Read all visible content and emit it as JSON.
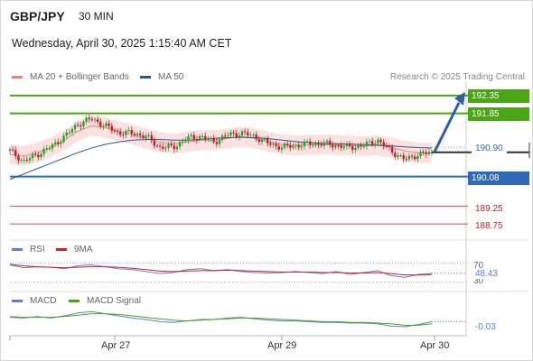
{
  "header": {
    "symbol": "GBP/JPY",
    "timeframe": "30 MIN",
    "datetime": "Wednesday, April 30, 2025 1:15:40 AM CET",
    "research": "Research © 2025 Trading Central"
  },
  "legend": {
    "ma20": "MA 20 + Bollinger Bands",
    "ma50": "MA 50",
    "rsi": "RSI",
    "rsi_ma": "9MA",
    "macd": "MACD",
    "macd_signal": "MACD Signal"
  },
  "colors": {
    "ma20": "#f08080",
    "ma50": "#2a5599",
    "bull_candle": "#2e9e2e",
    "bear_candle": "#c0202a",
    "resistance": "#4aa614",
    "support": "#2f6ab8",
    "target_down": "#c0202a",
    "arrow": "#2f5fa8"
  },
  "chart_data": [
    {
      "type": "candlestick",
      "title": "GBP/JPY",
      "x_ticks": [
        "Apr 27",
        "Apr 29",
        "Apr 30"
      ],
      "ylim": [
        188.4,
        192.7
      ],
      "levels": [
        {
          "label": "192.35",
          "value": 192.35,
          "kind": "resistance"
        },
        {
          "label": "191.85",
          "value": 191.85,
          "kind": "resistance"
        },
        {
          "label": "190.90",
          "value": 190.9,
          "kind": "pivot"
        },
        {
          "label": "190.08",
          "value": 190.08,
          "kind": "support"
        },
        {
          "label": "189.25",
          "value": 189.25,
          "kind": "target"
        },
        {
          "label": "188.75",
          "value": 188.75,
          "kind": "target"
        }
      ],
      "current_price": 190.76,
      "forecast_arrow": {
        "from": 190.77,
        "to": 192.35
      },
      "close_path": [
        190.8,
        190.5,
        190.7,
        190.9,
        191.2,
        191.55,
        191.7,
        191.5,
        191.3,
        191.3,
        191.2,
        190.9,
        190.9,
        191.15,
        191.2,
        191.05,
        191.25,
        191.3,
        191.2,
        191.0,
        190.9,
        190.95,
        191.0,
        191.0,
        190.95,
        190.9,
        190.95,
        191.1,
        190.8,
        190.55,
        190.7,
        190.75
      ],
      "ma20_path": [
        190.7,
        190.65,
        190.75,
        190.9,
        191.1,
        191.35,
        191.5,
        191.45,
        191.35,
        191.25,
        191.15,
        191.05,
        191.0,
        191.05,
        191.1,
        191.1,
        191.15,
        191.2,
        191.15,
        191.05,
        190.98,
        190.95,
        190.97,
        190.98,
        190.97,
        190.95,
        190.93,
        190.95,
        190.9,
        190.8,
        190.75,
        190.74
      ],
      "ma50_path": [
        190.0,
        190.15,
        190.3,
        190.45,
        190.6,
        190.75,
        190.88,
        190.98,
        191.05,
        191.1,
        191.12,
        191.12,
        191.1,
        191.1,
        191.12,
        191.15,
        191.17,
        191.18,
        191.17,
        191.14,
        191.1,
        191.06,
        191.03,
        191.01,
        191.0,
        190.99,
        190.97,
        190.96,
        190.94,
        190.91,
        190.89,
        190.88
      ]
    },
    {
      "type": "line",
      "title": "RSI",
      "levels": [
        {
          "label": "70",
          "value": 70
        },
        {
          "label": "30",
          "value": 30
        }
      ],
      "ylim": [
        20,
        80
      ],
      "current_label": "48.43",
      "current_value": 48.43,
      "series": [
        {
          "name": "RSI",
          "values": [
            66,
            60,
            62,
            61,
            58,
            64,
            66,
            62,
            58,
            56,
            52,
            48,
            50,
            56,
            58,
            54,
            56,
            52,
            50,
            49,
            50,
            52,
            50,
            48,
            52,
            46,
            50,
            54,
            44,
            40,
            46,
            48
          ]
        },
        {
          "name": "9MA",
          "values": [
            67,
            64,
            62,
            61,
            60,
            61,
            62,
            62,
            61,
            59,
            56,
            53,
            52,
            53,
            54,
            54,
            55,
            54,
            53,
            52,
            51,
            51,
            51,
            50,
            50,
            49,
            49,
            50,
            48,
            45,
            45,
            46
          ]
        }
      ]
    },
    {
      "type": "line",
      "title": "MACD",
      "ylim": [
        -0.2,
        0.15
      ],
      "current_label": "-0.03",
      "current_value": -0.03,
      "series": [
        {
          "name": "MACD",
          "values": [
            0.03,
            0.02,
            0.04,
            0.02,
            0.05,
            0.09,
            0.11,
            0.08,
            0.05,
            0.02,
            0.0,
            -0.03,
            -0.04,
            -0.02,
            0.0,
            0.0,
            0.02,
            0.03,
            0.01,
            -0.01,
            -0.02,
            -0.02,
            -0.03,
            -0.04,
            -0.04,
            -0.05,
            -0.05,
            -0.06,
            -0.09,
            -0.1,
            -0.07,
            -0.03
          ]
        },
        {
          "name": "MACD Signal",
          "values": [
            0.04,
            0.03,
            0.03,
            0.03,
            0.04,
            0.06,
            0.08,
            0.08,
            0.07,
            0.05,
            0.03,
            0.01,
            -0.01,
            -0.02,
            -0.01,
            0.0,
            0.01,
            0.02,
            0.02,
            0.01,
            0.0,
            -0.01,
            -0.02,
            -0.03,
            -0.03,
            -0.04,
            -0.04,
            -0.05,
            -0.06,
            -0.08,
            -0.08,
            -0.06
          ]
        }
      ]
    }
  ]
}
